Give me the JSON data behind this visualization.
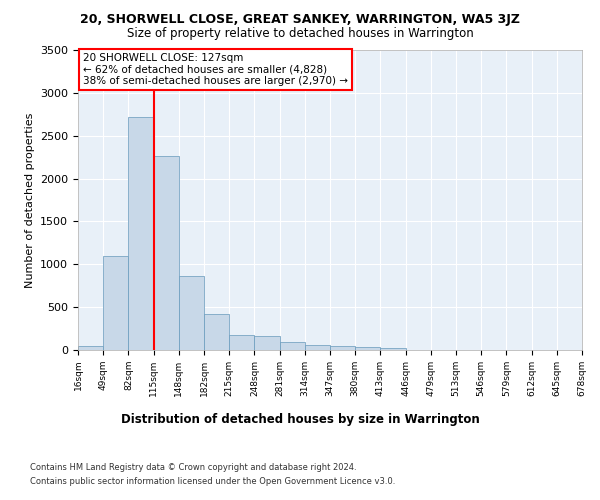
{
  "title": "20, SHORWELL CLOSE, GREAT SANKEY, WARRINGTON, WA5 3JZ",
  "subtitle": "Size of property relative to detached houses in Warrington",
  "xlabel": "Distribution of detached houses by size in Warrington",
  "ylabel": "Number of detached properties",
  "bar_values": [
    50,
    1100,
    2720,
    2260,
    860,
    415,
    170,
    165,
    90,
    60,
    50,
    35,
    25,
    5,
    0,
    0,
    0,
    0,
    0,
    0
  ],
  "categories": [
    "16sqm",
    "49sqm",
    "82sqm",
    "115sqm",
    "148sqm",
    "182sqm",
    "215sqm",
    "248sqm",
    "281sqm",
    "314sqm",
    "347sqm",
    "380sqm",
    "413sqm",
    "446sqm",
    "479sqm",
    "513sqm",
    "546sqm",
    "579sqm",
    "612sqm",
    "645sqm",
    "678sqm"
  ],
  "bar_color": "#c8d8e8",
  "bar_edge_color": "#6699bb",
  "vline_x_index": 3,
  "vline_color": "red",
  "annotation_box_text": "20 SHORWELL CLOSE: 127sqm\n← 62% of detached houses are smaller (4,828)\n38% of semi-detached houses are larger (2,970) →",
  "annotation_box_color": "red",
  "background_color": "#e8f0f8",
  "grid_color": "white",
  "ylim": [
    0,
    3500
  ],
  "yticks": [
    0,
    500,
    1000,
    1500,
    2000,
    2500,
    3000,
    3500
  ],
  "footer_line1": "Contains HM Land Registry data © Crown copyright and database right 2024.",
  "footer_line2": "Contains public sector information licensed under the Open Government Licence v3.0."
}
